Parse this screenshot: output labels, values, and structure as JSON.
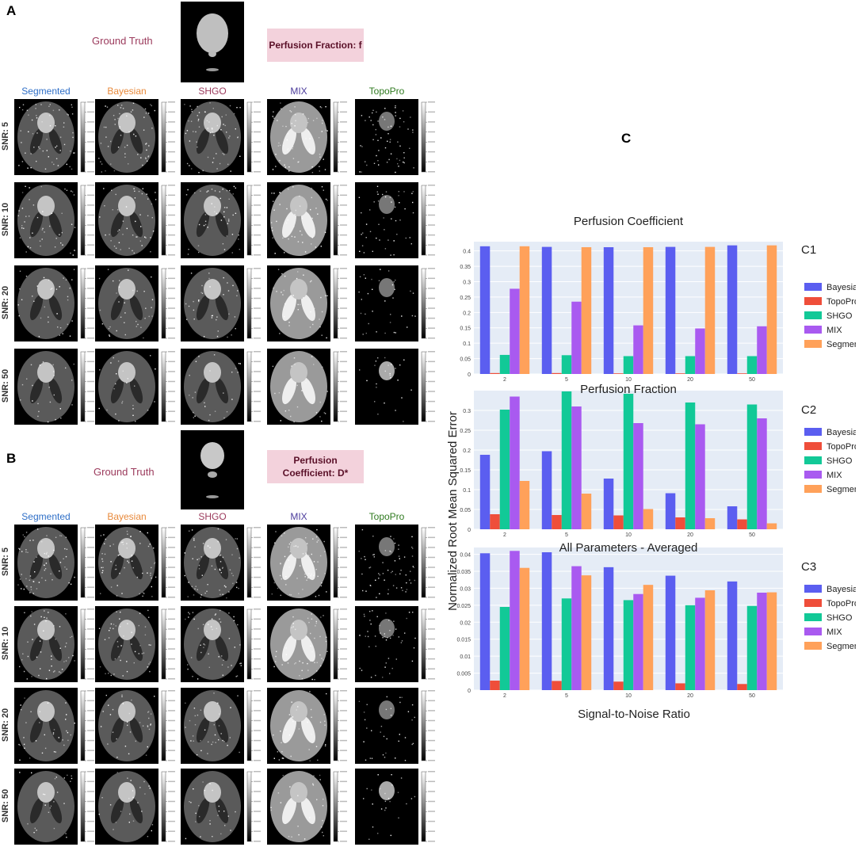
{
  "panels": {
    "A": {
      "letter": "A",
      "ground_truth_label": "Ground Truth",
      "parameter_label": "Perfusion Fraction: f",
      "methods": [
        "Segmented",
        "Bayesian",
        "SHGO",
        "MIX",
        "TopoPro"
      ],
      "snr_rows": [
        "SNR: 5",
        "SNR: 10",
        "SNR: 20",
        "SNR: 50"
      ]
    },
    "B": {
      "letter": "B",
      "ground_truth_label": "Ground Truth",
      "parameter_label": "Perfusion Coefficient: D*",
      "methods": [
        "Segmented",
        "Bayesian",
        "SHGO",
        "MIX",
        "TopoPro"
      ],
      "snr_rows": [
        "SNR: 5",
        "SNR: 10",
        "SNR: 20",
        "SNR: 50"
      ]
    },
    "C": {
      "letter": "C"
    }
  },
  "method_colors": {
    "Segmented": "#2f6fc7",
    "Bayesian": "#e8893a",
    "SHGO": "#9b3a5c",
    "MIX": "#4b3b9b",
    "TopoPro": "#2f7a1f"
  },
  "chart_common": {
    "ylabel": "Normalized Root Mean Squared Error",
    "xlabel": "Signal-to-Noise Ratio",
    "legend_placement": "right"
  },
  "chart_data": [
    {
      "id": "C1",
      "type": "bar",
      "title": "Perfusion Coefficient",
      "categories": [
        "2",
        "5",
        "10",
        "20",
        "50"
      ],
      "ylim": [
        0,
        0.43
      ],
      "yticks": [
        "0",
        "0.05",
        "0.1",
        "0.15",
        "0.2",
        "0.25",
        "0.3",
        "0.35",
        "0.4"
      ],
      "ytick_values": [
        0,
        0.05,
        0.1,
        0.15,
        0.2,
        0.25,
        0.3,
        0.35,
        0.4
      ],
      "series": [
        {
          "name": "Bayesian",
          "color": "#5b5ef0",
          "values": [
            0.415,
            0.413,
            0.412,
            0.413,
            0.418
          ]
        },
        {
          "name": "TopoPro",
          "color": "#ef4e3a",
          "values": [
            0.003,
            0.003,
            0.002,
            0.002,
            0.002
          ]
        },
        {
          "name": "SHGO",
          "color": "#12c997",
          "values": [
            0.062,
            0.061,
            0.058,
            0.058,
            0.058
          ]
        },
        {
          "name": "MIX",
          "color": "#a95af0",
          "values": [
            0.277,
            0.235,
            0.158,
            0.148,
            0.155
          ]
        },
        {
          "name": "Segmented",
          "color": "#ffa15a",
          "values": [
            0.415,
            0.412,
            0.412,
            0.413,
            0.418
          ]
        }
      ]
    },
    {
      "id": "C2",
      "type": "bar",
      "title": "Perfusion Fraction",
      "categories": [
        "2",
        "5",
        "10",
        "20",
        "50"
      ],
      "ylim": [
        0,
        0.35
      ],
      "yticks": [
        "0",
        "0.05",
        "0.1",
        "0.15",
        "0.2",
        "0.25",
        "0.3"
      ],
      "ytick_values": [
        0,
        0.05,
        0.1,
        0.15,
        0.2,
        0.25,
        0.3
      ],
      "series": [
        {
          "name": "Bayesian",
          "color": "#5b5ef0",
          "values": [
            0.188,
            0.197,
            0.128,
            0.091,
            0.058
          ]
        },
        {
          "name": "TopoPro",
          "color": "#ef4e3a",
          "values": [
            0.038,
            0.036,
            0.035,
            0.03,
            0.025
          ]
        },
        {
          "name": "SHGO",
          "color": "#12c997",
          "values": [
            0.302,
            0.348,
            0.342,
            0.32,
            0.315
          ]
        },
        {
          "name": "MIX",
          "color": "#a95af0",
          "values": [
            0.335,
            0.31,
            0.268,
            0.265,
            0.28
          ]
        },
        {
          "name": "Segmented",
          "color": "#ffa15a",
          "values": [
            0.122,
            0.09,
            0.051,
            0.028,
            0.015
          ]
        }
      ]
    },
    {
      "id": "C3",
      "type": "bar",
      "title": "All Parameters - Averaged",
      "categories": [
        "2",
        "5",
        "10",
        "20",
        "50"
      ],
      "ylim": [
        0,
        0.042
      ],
      "yticks": [
        "0",
        "0.005",
        "0.01",
        "0.015",
        "0.02",
        "0.025",
        "0.03",
        "0.035",
        "0.04"
      ],
      "ytick_values": [
        0,
        0.005,
        0.01,
        0.015,
        0.02,
        0.025,
        0.03,
        0.035,
        0.04
      ],
      "series": [
        {
          "name": "Bayesian",
          "color": "#5b5ef0",
          "values": [
            0.0403,
            0.0406,
            0.0362,
            0.0337,
            0.032
          ]
        },
        {
          "name": "TopoPro",
          "color": "#ef4e3a",
          "values": [
            0.0028,
            0.0027,
            0.0025,
            0.002,
            0.0018
          ]
        },
        {
          "name": "SHGO",
          "color": "#12c997",
          "values": [
            0.0245,
            0.027,
            0.0265,
            0.025,
            0.0248
          ]
        },
        {
          "name": "MIX",
          "color": "#a95af0",
          "values": [
            0.041,
            0.0365,
            0.0283,
            0.0272,
            0.0287
          ]
        },
        {
          "name": "Segmented",
          "color": "#ffa15a",
          "values": [
            0.036,
            0.0338,
            0.031,
            0.0294,
            0.0288
          ]
        }
      ]
    }
  ]
}
